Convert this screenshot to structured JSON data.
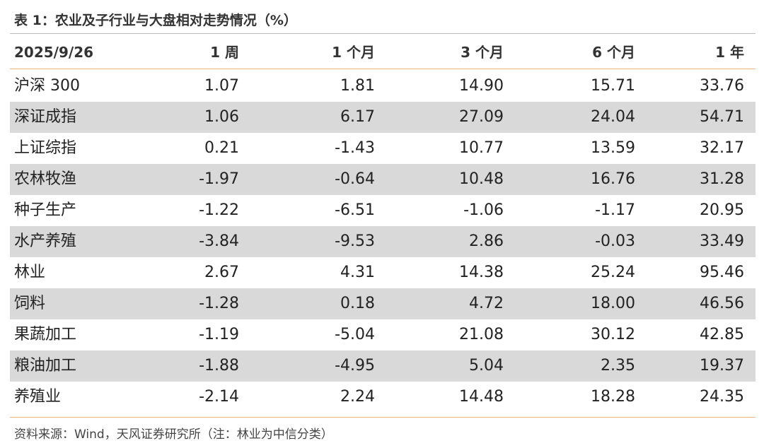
{
  "title": "表 1：农业及子行业与大盘相对走势情况（%）",
  "table": {
    "header": [
      "2025/9/26",
      "1 周",
      "1 个月",
      "3 个月",
      "6 个月",
      "1 年"
    ],
    "rows": [
      [
        "沪深 300",
        "1.07",
        "1.81",
        "14.90",
        "15.71",
        "33.76"
      ],
      [
        "深证成指",
        "1.06",
        "6.17",
        "27.09",
        "24.04",
        "54.71"
      ],
      [
        "上证综指",
        "0.21",
        "-1.43",
        "10.77",
        "13.59",
        "32.17"
      ],
      [
        "农林牧渔",
        "-1.97",
        "-0.64",
        "10.48",
        "16.76",
        "31.28"
      ],
      [
        "种子生产",
        "-1.22",
        "-6.51",
        "-1.06",
        "-1.17",
        "20.95"
      ],
      [
        "水产养殖",
        "-3.84",
        "-9.53",
        "2.86",
        "-0.03",
        "33.49"
      ],
      [
        "林业",
        "2.67",
        "4.31",
        "14.38",
        "25.24",
        "95.46"
      ],
      [
        "饲料",
        "-1.28",
        "0.18",
        "4.72",
        "18.00",
        "46.56"
      ],
      [
        "果蔬加工",
        "-1.19",
        "-5.04",
        "21.08",
        "30.12",
        "42.85"
      ],
      [
        "粮油加工",
        "-1.88",
        "-4.95",
        "5.04",
        "2.35",
        "19.37"
      ],
      [
        "养殖业",
        "-2.14",
        "2.24",
        "14.48",
        "18.28",
        "24.35"
      ]
    ]
  },
  "source": "资料来源：Wind，天风证券研究所（注：林业为中信分类）"
}
